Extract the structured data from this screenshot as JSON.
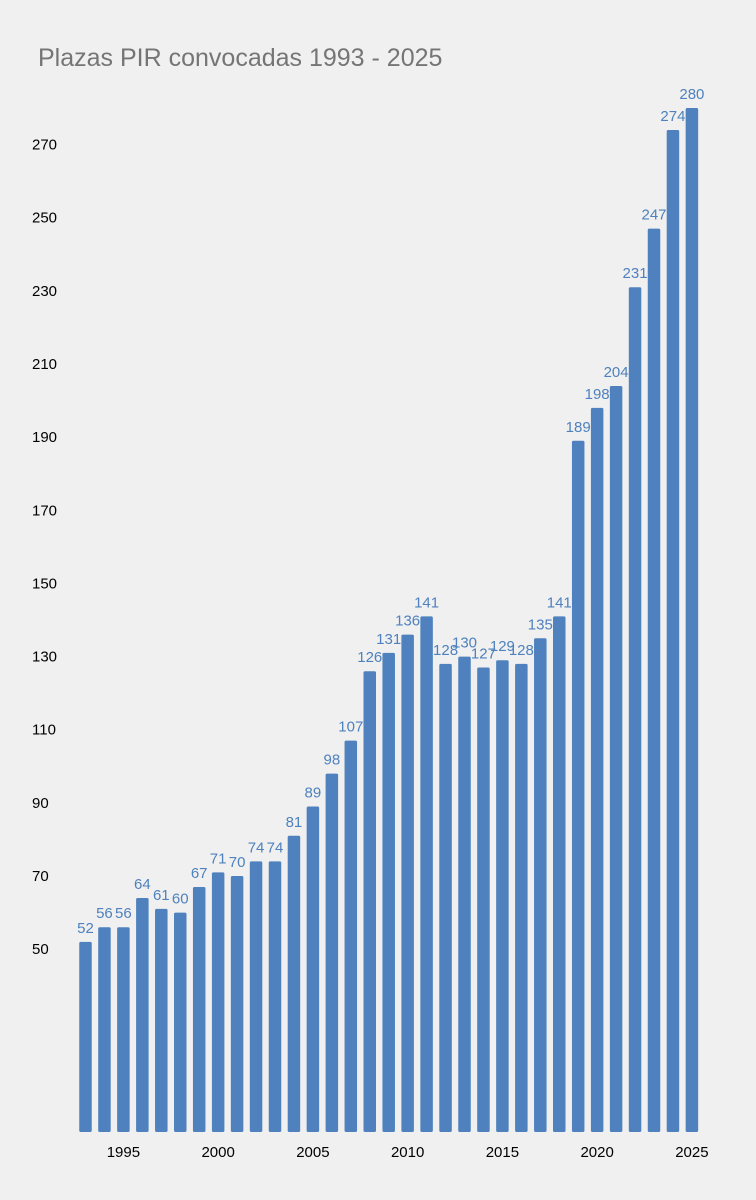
{
  "chart_data": {
    "type": "bar",
    "title": "Plazas PIR convocadas 1993 - 2025",
    "xlabel": "",
    "ylabel": "",
    "categories": [
      1993,
      1994,
      1995,
      1996,
      1997,
      1998,
      1999,
      2000,
      2001,
      2002,
      2003,
      2004,
      2005,
      2006,
      2007,
      2008,
      2009,
      2010,
      2011,
      2012,
      2013,
      2014,
      2015,
      2016,
      2017,
      2018,
      2019,
      2020,
      2021,
      2022,
      2023,
      2024,
      2025
    ],
    "values": [
      52,
      56,
      56,
      64,
      61,
      60,
      67,
      71,
      70,
      74,
      74,
      81,
      89,
      98,
      107,
      126,
      131,
      136,
      141,
      128,
      130,
      127,
      129,
      128,
      135,
      141,
      189,
      198,
      204,
      231,
      247,
      274,
      280
    ],
    "data_labels": [
      "52",
      "56",
      "56",
      "64",
      "61",
      "60",
      "67",
      "71",
      "70",
      "74",
      "74",
      "81",
      "89",
      "98",
      "107",
      "126",
      "131",
      "136",
      "141",
      "128",
      "130",
      "127",
      "129",
      "128",
      "135",
      "141",
      "189",
      "198",
      "204",
      "231",
      "247",
      "274",
      "280"
    ],
    "y_ticks": [
      50,
      70,
      90,
      110,
      130,
      150,
      170,
      190,
      210,
      230,
      250,
      270
    ],
    "y_tick_labels": [
      "50",
      "70",
      "90",
      "110",
      "130",
      "150",
      "170",
      "190",
      "210",
      "230",
      "250",
      "270"
    ],
    "x_ticks": [
      1995,
      2000,
      2005,
      2010,
      2015,
      2020,
      2025
    ],
    "x_tick_labels": [
      "1995",
      "2000",
      "2005",
      "2010",
      "2015",
      "2020",
      "2025"
    ],
    "ylim": [
      0,
      280
    ],
    "grid": false,
    "legend": "none",
    "colors": {
      "bar": "#4e81bd",
      "label": "#4e81bd",
      "title": "#757575",
      "axis_text": "#000000",
      "background": "#f0f0f0"
    }
  }
}
